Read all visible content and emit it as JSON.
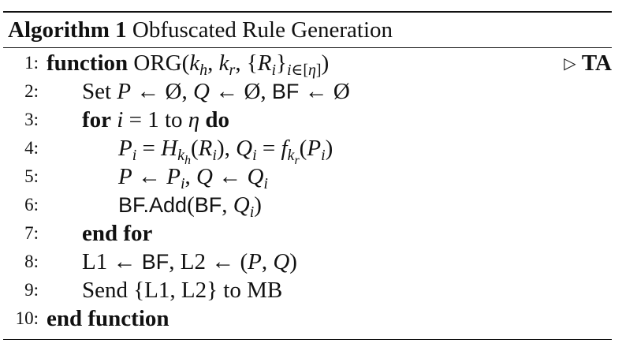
{
  "algorithm": {
    "label": "Algorithm 1",
    "title": "Obfuscated Rule Generation",
    "lines": [
      {
        "num": "1:"
      },
      {
        "num": "2:"
      },
      {
        "num": "3:"
      },
      {
        "num": "4:"
      },
      {
        "num": "5:"
      },
      {
        "num": "6:"
      },
      {
        "num": "7:"
      },
      {
        "num": "8:"
      },
      {
        "num": "9:"
      },
      {
        "num": "10:"
      }
    ],
    "comment": "TA",
    "tokens": {
      "function_kw": "function",
      "org": "ORG",
      "set_kw": "Set",
      "for_kw": "for",
      "to_kw": "to",
      "do_kw": "do",
      "end_for": "end for",
      "end_function": "end function",
      "send": "Send",
      "bf": "BF",
      "bf_add": "BF.Add",
      "l1": "L1",
      "l2": "L2",
      "mb": "MB",
      "to2": "to"
    }
  }
}
